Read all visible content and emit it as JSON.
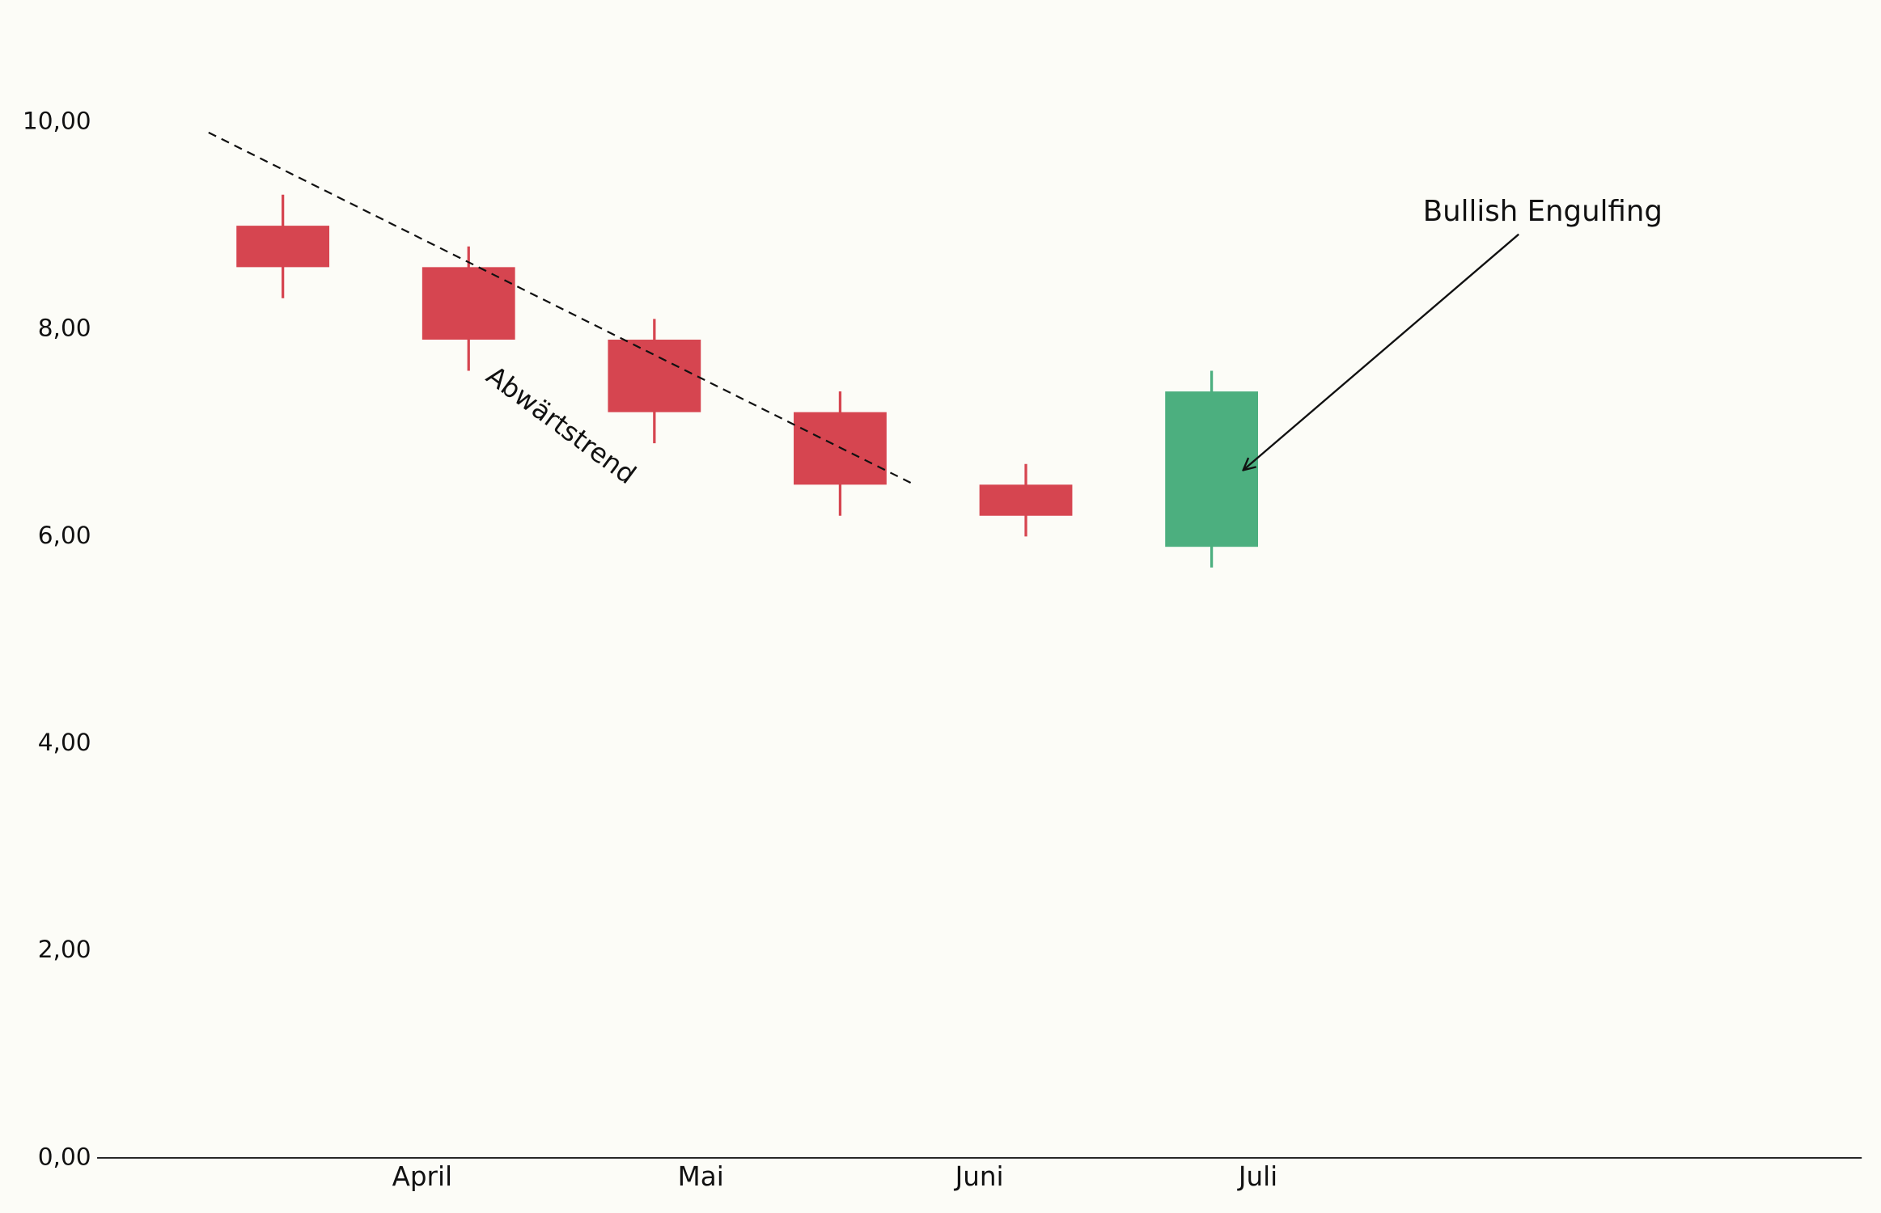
{
  "chart_data": {
    "type": "candlestick",
    "x": [
      0,
      1,
      2,
      3,
      4,
      5
    ],
    "open": [
      9.0,
      8.6,
      7.9,
      7.2,
      6.5,
      5.9
    ],
    "high": [
      9.3,
      8.8,
      8.1,
      7.4,
      6.7,
      7.6
    ],
    "low": [
      8.3,
      7.6,
      6.9,
      6.2,
      6.0,
      5.7
    ],
    "close": [
      8.6,
      7.9,
      7.2,
      6.5,
      6.2,
      7.4
    ],
    "up_color": "#4caf7f",
    "down_color": "#d64550",
    "xlim": [
      -1,
      8.5
    ],
    "xticks": [
      {
        "value": 0.75,
        "label": "April"
      },
      {
        "value": 2.25,
        "label": "Mai"
      },
      {
        "value": 3.75,
        "label": "Juni"
      },
      {
        "value": 5.25,
        "label": "Juli"
      }
    ],
    "ylim": [
      0,
      10.8
    ],
    "yticks": [
      {
        "value": 0,
        "label": "0,00"
      },
      {
        "value": 2,
        "label": "2,00"
      },
      {
        "value": 4,
        "label": "4,00"
      },
      {
        "value": 6,
        "label": "6,00"
      },
      {
        "value": 8,
        "label": "8,00"
      },
      {
        "value": 10,
        "label": "10,00"
      }
    ],
    "trendline": {
      "x": [
        -0.4,
        3.4
      ],
      "y": [
        9.9,
        6.5
      ],
      "label": "Abwärtstrend"
    },
    "annotations": [
      {
        "text": "Bullish Engulfing",
        "xy": [
          5.17,
          6.64
        ]
      }
    ]
  }
}
